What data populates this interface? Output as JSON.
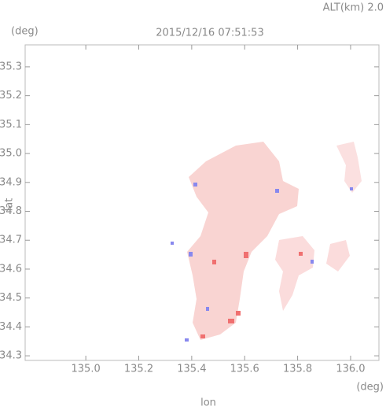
{
  "chart_data": {
    "type": "map",
    "altitude_label": "ALT(km) 2.0",
    "title": "2015/12/16 07:51:53",
    "y_unit": "(deg)",
    "x_unit": "(deg)",
    "ylabel": "lat",
    "xlabel": "lon",
    "xlim": [
      134.771,
      136.107
    ],
    "ylim": [
      34.284,
      35.376
    ],
    "xticks": [
      {
        "value": 135,
        "label": "135.0"
      },
      135.2,
      135.4,
      135.6,
      135.8,
      {
        "value": 136,
        "label": "136.0"
      }
    ],
    "yticks": [
      34.3,
      34.4,
      34.5,
      34.6,
      34.7,
      34.8,
      34.9,
      {
        "value": 35,
        "label": "35.0"
      },
      35.1,
      35.2,
      35.3
    ]
  }
}
